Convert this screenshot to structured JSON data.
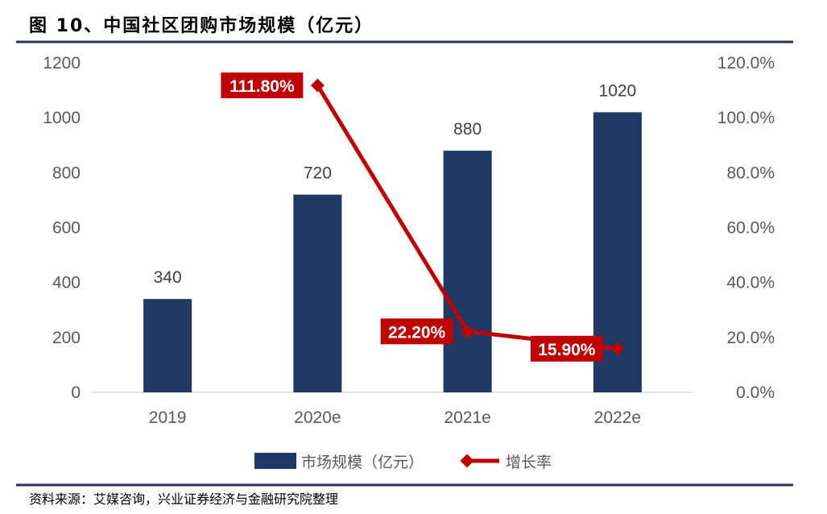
{
  "title": "图 10、中国社区团购市场规模（亿元）",
  "source": "资料来源：艾媒咨询，兴业证券经济与金融研究院整理",
  "chart_data": {
    "type": "bar+line",
    "categories": [
      "2019",
      "2020e",
      "2021e",
      "2022e"
    ],
    "series": [
      {
        "name": "市场规模（亿元）",
        "type": "bar",
        "axis": "left",
        "values": [
          340,
          720,
          880,
          1020
        ],
        "labels": [
          "340",
          "720",
          "880",
          "1020"
        ],
        "color": "#1f3864"
      },
      {
        "name": "增长率",
        "type": "line",
        "axis": "right",
        "values": [
          null,
          111.8,
          22.2,
          15.9
        ],
        "labels": [
          "",
          "111.80%",
          "22.20%",
          "15.90%"
        ],
        "color": "#c00000"
      }
    ],
    "ylim_left": [
      0,
      1200
    ],
    "yticks_left": [
      "0",
      "200",
      "400",
      "600",
      "800",
      "1000",
      "1200"
    ],
    "ylim_right": [
      0,
      120
    ],
    "yticks_right": [
      "0.0%",
      "20.0%",
      "40.0%",
      "60.0%",
      "80.0%",
      "100.0%",
      "120.0%"
    ],
    "grid": false,
    "legend": "bottom"
  },
  "colors": {
    "rule": "#2e2e5e",
    "axis": "#d9d9d9"
  }
}
